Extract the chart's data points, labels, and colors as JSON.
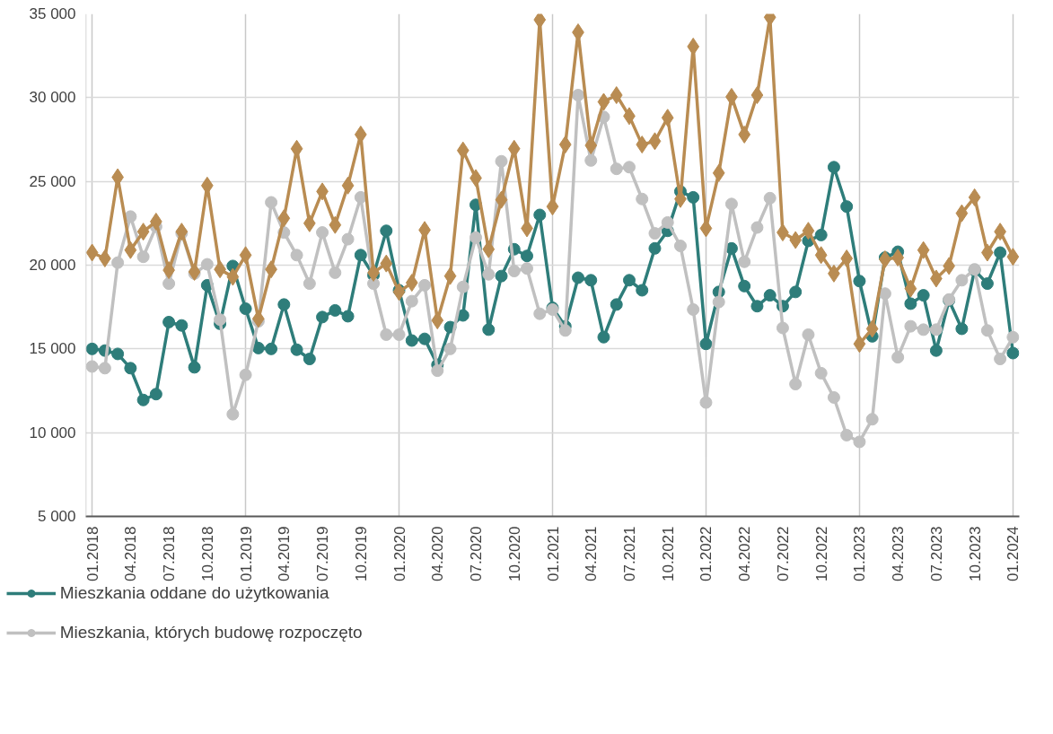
{
  "chart_data": {
    "type": "line",
    "categories": [
      "01.2018",
      null,
      null,
      "04.2018",
      null,
      null,
      "07.2018",
      null,
      null,
      "10.2018",
      null,
      null,
      "01.2019",
      null,
      null,
      "04.2019",
      null,
      null,
      "07.2019",
      null,
      null,
      "10.2019",
      null,
      null,
      "01.2020",
      null,
      null,
      "04.2020",
      null,
      null,
      "07.2020",
      null,
      null,
      "10.2020",
      null,
      null,
      "01.2021",
      null,
      null,
      "04.2021",
      null,
      null,
      "07.2021",
      null,
      null,
      "10.2021",
      null,
      null,
      "01.2022",
      null,
      null,
      "04.2022",
      null,
      null,
      "07.2022",
      null,
      null,
      "10.2022",
      null,
      null,
      "01.2023",
      null,
      null,
      "04.2023",
      null,
      null,
      "07.2023",
      null,
      null,
      "10.2023",
      null,
      null,
      "01.2024"
    ],
    "series": [
      {
        "name": "Mieszkania oddane do użytkowania",
        "color": "#2e7d7a",
        "marker": "circle",
        "values": [
          15000,
          14900,
          14700,
          13850,
          11950,
          12300,
          16600,
          16400,
          13900,
          18800,
          16500,
          19950,
          17400,
          15050,
          15000,
          17650,
          14950,
          14400,
          16900,
          17300,
          16950,
          20600,
          19400,
          22050,
          18500,
          15500,
          15600,
          14050,
          16300,
          17000,
          23600,
          16150,
          19350,
          20950,
          20550,
          23000,
          17450,
          16350,
          19250,
          19100,
          15700,
          17650,
          19100,
          18500,
          21000,
          22050,
          24400,
          24050,
          15300,
          18400,
          21000,
          18750,
          17550,
          18200,
          17550,
          18400,
          21450,
          21800,
          25850,
          23500,
          19050,
          15750,
          20450,
          20800,
          17700,
          18200,
          14900,
          17900,
          16200,
          19700,
          18900,
          20750,
          14750
        ]
      },
      {
        "name": "Mieszkania, których budowę rozpoczęto",
        "color": "#c0c0c0",
        "marker": "circle",
        "values": [
          13950,
          13850,
          20150,
          22900,
          20500,
          22300,
          18900,
          21900,
          19500,
          20050,
          16750,
          11100,
          13450,
          16650,
          23750,
          21950,
          20600,
          18900,
          21950,
          19550,
          21550,
          24050,
          18900,
          15850,
          15850,
          17850,
          18800,
          13700,
          15000,
          18700,
          21650,
          19450,
          26200,
          19650,
          19800,
          17100,
          17350,
          16100,
          30150,
          26250,
          28850,
          25750,
          25850,
          23950,
          21900,
          22550,
          21150,
          17350,
          11800,
          17800,
          23650,
          20200,
          22250,
          24000,
          16250,
          12900,
          15850,
          13550,
          12100,
          9850,
          9450,
          10800,
          18300,
          14500,
          16350,
          16150,
          16150,
          17950,
          19100,
          19750,
          16100,
          14400,
          15700
        ]
      },
      {
        "color": "#b98c52",
        "marker": "diamond",
        "values": [
          20750,
          20400,
          25250,
          20900,
          22000,
          22600,
          19700,
          22000,
          19600,
          24750,
          19750,
          19300,
          20600,
          16800,
          19750,
          22800,
          26950,
          22500,
          24400,
          22400,
          24750,
          27800,
          19550,
          20100,
          18400,
          18950,
          22100,
          16700,
          19350,
          26850,
          25200,
          20950,
          23900,
          26950,
          22200,
          34650,
          23500,
          27200,
          33900,
          27150,
          29750,
          30150,
          28900,
          27200,
          27400,
          28800,
          23950,
          33050,
          22200,
          25500,
          30050,
          27800,
          30150,
          34800,
          21950,
          21500,
          22050,
          20600,
          19500,
          20400,
          15300,
          16200,
          20350,
          20450,
          18600,
          20900,
          19200,
          19950,
          23100,
          24050,
          20750,
          22000,
          20500
        ]
      }
    ],
    "ylim": [
      5000,
      35000
    ],
    "yticks": [
      {
        "value": 5000,
        "label": "5 000"
      },
      {
        "value": 10000,
        "label": "10 000"
      },
      {
        "value": 15000,
        "label": "15 000"
      },
      {
        "value": 20000,
        "label": "20 000"
      },
      {
        "value": 25000,
        "label": "25 000"
      },
      {
        "value": 30000,
        "label": "30 000"
      },
      {
        "value": 35000,
        "label": "35 000"
      }
    ],
    "grid": true,
    "legend": "bottom",
    "line_style": "solid"
  }
}
